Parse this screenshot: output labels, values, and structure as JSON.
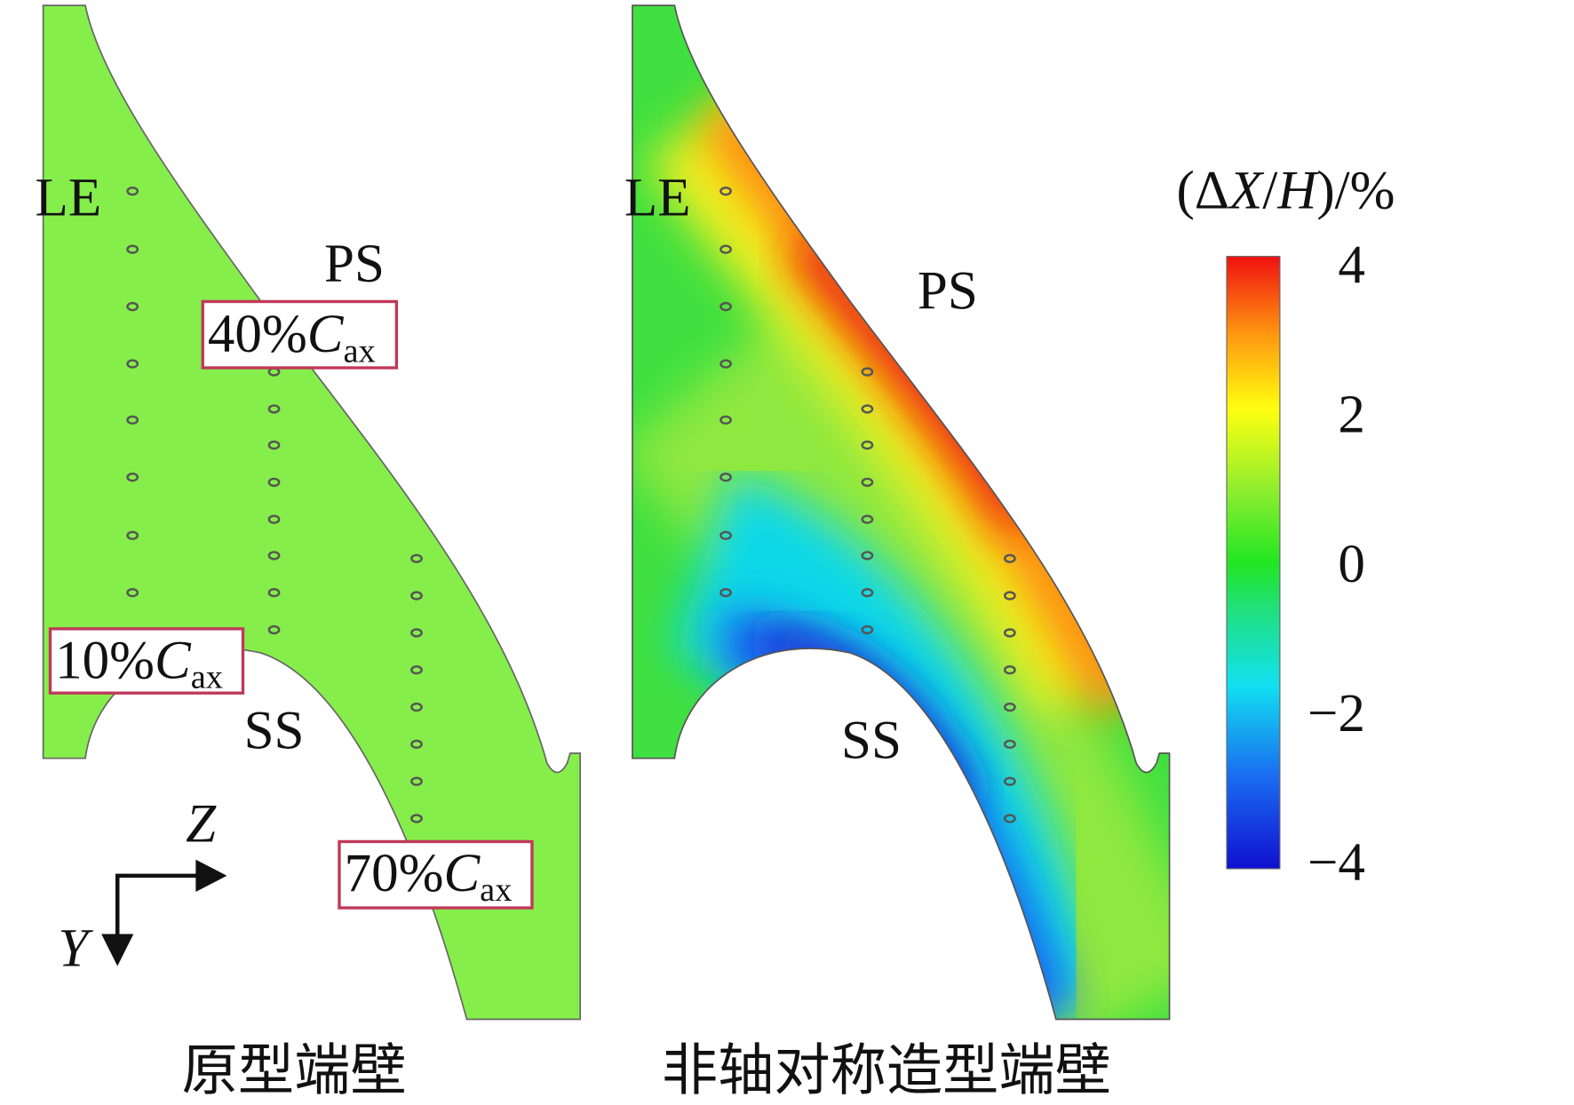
{
  "panels": [
    {
      "caption": "原型端壁",
      "labels": {
        "le": "LE",
        "ps": "PS",
        "ss": "SS"
      },
      "stations": [
        {
          "prefix": "40%",
          "symbol": "C",
          "subscript": "ax"
        },
        {
          "prefix": "10%",
          "symbol": "C",
          "subscript": "ax"
        },
        {
          "prefix": "70%",
          "symbol": "C",
          "subscript": "ax"
        }
      ],
      "axes": {
        "horizontal": "Z",
        "vertical": "Y"
      }
    },
    {
      "caption": "非轴对称造型端壁",
      "labels": {
        "le": "LE",
        "ps": "PS",
        "ss": "SS"
      }
    }
  ],
  "colorbar": {
    "title": {
      "open": "(Δ",
      "var1": "X",
      "slash": "/",
      "var2": "H",
      "close": ")/%"
    },
    "clim": [
      -4.1,
      4.1
    ],
    "ticks": [
      4,
      2,
      0,
      {
        "value": -2,
        "label": "−2"
      },
      {
        "value": -4,
        "label": "−4"
      }
    ]
  }
}
